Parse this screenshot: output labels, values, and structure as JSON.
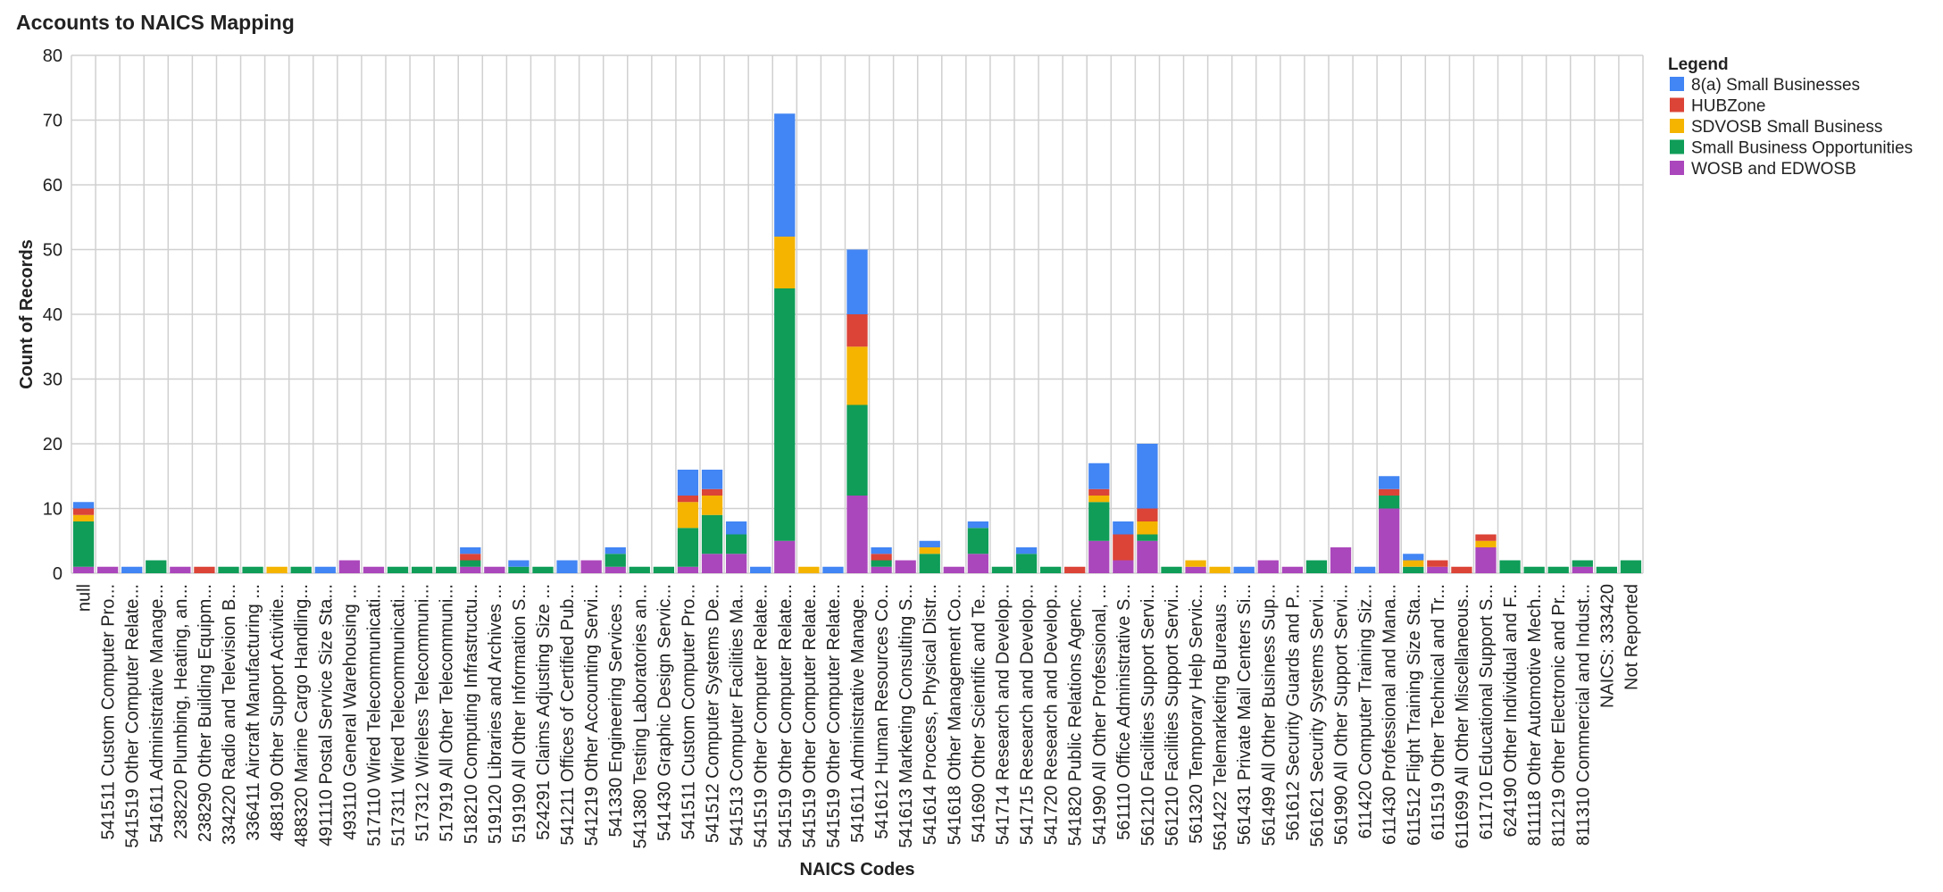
{
  "chart_data": {
    "type": "bar",
    "stacked": true,
    "title": "Accounts to NAICS Mapping",
    "xlabel": "NAICS Codes",
    "ylabel": "Count of Records",
    "ylim": [
      0,
      80
    ],
    "yticks": [
      0,
      10,
      20,
      30,
      40,
      50,
      60,
      70,
      80
    ],
    "grid": true,
    "legend_title": "Legend",
    "legend_position": "top-right",
    "categories": [
      "null",
      "541511 Custom Computer Pro...",
      "541519 Other Computer Relate...",
      "541611 Administrative Manage...",
      "238220 Plumbing, Heating, an...",
      "238290 Other Building Equipm...",
      "334220 Radio and Television B...",
      "336411 Aircraft Manufacturing ...",
      "488190 Other Support Activitie...",
      "488320 Marine Cargo Handling...",
      "491110 Postal Service Size Sta...",
      "493110 General Warehousing ...",
      "517110 Wired Telecommunicati...",
      "517311 Wired Telecommunicati...",
      "517312 Wireless Telecommuni...",
      "517919 All Other Telecommuni...",
      "518210 Computing Infrastructu...",
      "519120 Libraries and Archives ...",
      "519190 All Other Information S...",
      "524291 Claims Adjusting Size ...",
      "541211 Offices of Certified Pub...",
      "541219 Other Accounting Servi...",
      "541330 Engineering Services ...",
      "541380 Testing Laboratories an...",
      "541430 Graphic Design Servic...",
      "541511 Custom Computer Pro...",
      "541512 Computer Systems De...",
      "541513 Computer Facilities Ma...",
      "541519 Other Computer Relate...",
      "541519 Other Computer Relate...",
      "541519 Other Computer Relate...",
      "541519 Other Computer Relate...",
      "541611 Administrative Manage...",
      "541612 Human Resources Co...",
      "541613 Marketing Consulting S...",
      "541614 Process, Physical Distr...",
      "541618 Other Management Co...",
      "541690 Other Scientific and Te...",
      "541714 Research and Develop...",
      "541715 Research and Develop...",
      "541720 Research and Develop...",
      "541820 Public Relations Agenc...",
      "541990 All Other Professional, ...",
      "561110 Office Administrative S...",
      "561210 Facilities Support Servi...",
      "561210 Facilities Support Servi...",
      "561320 Temporary Help Servic...",
      "561422 Telemarketing Bureaus ...",
      "561431 Private Mail Centers Si...",
      "561499 All Other Business Sup...",
      "561612 Security Guards and P...",
      "561621 Security Systems Servi...",
      "561990 All Other Support Servi...",
      "611420 Computer Training Siz...",
      "611430 Professional and Mana...",
      "611512 Flight Training Size Sta...",
      "611519 Other Technical and Tr...",
      "611699 All Other Miscellaneous...",
      "611710 Educational Support S...",
      "624190 Other Individual and F...",
      "811118 Other Automotive Mech...",
      "811219 Other Electronic and Pr...",
      "811310 Commercial and Indust...",
      "NAICS: 333420",
      "Not Reported"
    ],
    "series": [
      {
        "name": "WOSB and EDWOSB",
        "color": "#ab47bc",
        "values": [
          1,
          1,
          0,
          0,
          1,
          0,
          0,
          0,
          0,
          0,
          0,
          2,
          1,
          0,
          0,
          0,
          1,
          1,
          0,
          0,
          0,
          2,
          1,
          0,
          0,
          1,
          3,
          3,
          0,
          5,
          0,
          0,
          12,
          1,
          2,
          0,
          1,
          3,
          0,
          0,
          0,
          0,
          5,
          2,
          5,
          0,
          1,
          0,
          0,
          2,
          1,
          0,
          4,
          0,
          10,
          0,
          1,
          0,
          4,
          0,
          0,
          0,
          1,
          0,
          0
        ]
      },
      {
        "name": "Small Business Opportunities",
        "color": "#0f9d58",
        "values": [
          7,
          0,
          0,
          2,
          0,
          0,
          1,
          1,
          0,
          1,
          0,
          0,
          0,
          1,
          1,
          1,
          1,
          0,
          1,
          1,
          0,
          0,
          2,
          1,
          1,
          6,
          6,
          3,
          0,
          39,
          0,
          0,
          14,
          1,
          0,
          3,
          0,
          4,
          1,
          3,
          1,
          0,
          6,
          0,
          1,
          1,
          0,
          0,
          0,
          0,
          0,
          2,
          0,
          0,
          2,
          1,
          0,
          0,
          0,
          2,
          1,
          1,
          1,
          1,
          2
        ]
      },
      {
        "name": "SDVOSB Small Business",
        "color": "#f4b400",
        "values": [
          1,
          0,
          0,
          0,
          0,
          0,
          0,
          0,
          1,
          0,
          0,
          0,
          0,
          0,
          0,
          0,
          0,
          0,
          0,
          0,
          0,
          0,
          0,
          0,
          0,
          4,
          3,
          0,
          0,
          8,
          1,
          0,
          9,
          0,
          0,
          1,
          0,
          0,
          0,
          0,
          0,
          0,
          1,
          0,
          2,
          0,
          1,
          1,
          0,
          0,
          0,
          0,
          0,
          0,
          0,
          1,
          0,
          0,
          1,
          0,
          0,
          0,
          0,
          0,
          0
        ]
      },
      {
        "name": "HUBZone",
        "color": "#db4437",
        "values": [
          1,
          0,
          0,
          0,
          0,
          1,
          0,
          0,
          0,
          0,
          0,
          0,
          0,
          0,
          0,
          0,
          1,
          0,
          0,
          0,
          0,
          0,
          0,
          0,
          0,
          1,
          1,
          0,
          0,
          0,
          0,
          0,
          5,
          1,
          0,
          0,
          0,
          0,
          0,
          0,
          0,
          1,
          1,
          4,
          2,
          0,
          0,
          0,
          0,
          0,
          0,
          0,
          0,
          0,
          1,
          0,
          1,
          1,
          1,
          0,
          0,
          0,
          0,
          0,
          0
        ]
      },
      {
        "name": "8(a) Small Businesses",
        "color": "#4285f4",
        "values": [
          1,
          0,
          1,
          0,
          0,
          0,
          0,
          0,
          0,
          0,
          1,
          0,
          0,
          0,
          0,
          0,
          1,
          0,
          1,
          0,
          2,
          0,
          1,
          0,
          0,
          4,
          3,
          2,
          1,
          19,
          0,
          1,
          10,
          1,
          0,
          1,
          0,
          1,
          0,
          1,
          0,
          0,
          4,
          2,
          10,
          0,
          0,
          0,
          1,
          0,
          0,
          0,
          0,
          1,
          2,
          1,
          0,
          0,
          0,
          0,
          0,
          0,
          0,
          0,
          0
        ]
      }
    ],
    "legend_order": [
      "8(a) Small Businesses",
      "HUBZone",
      "SDVOSB Small Business",
      "Small Business Opportunities",
      "WOSB and EDWOSB"
    ]
  }
}
